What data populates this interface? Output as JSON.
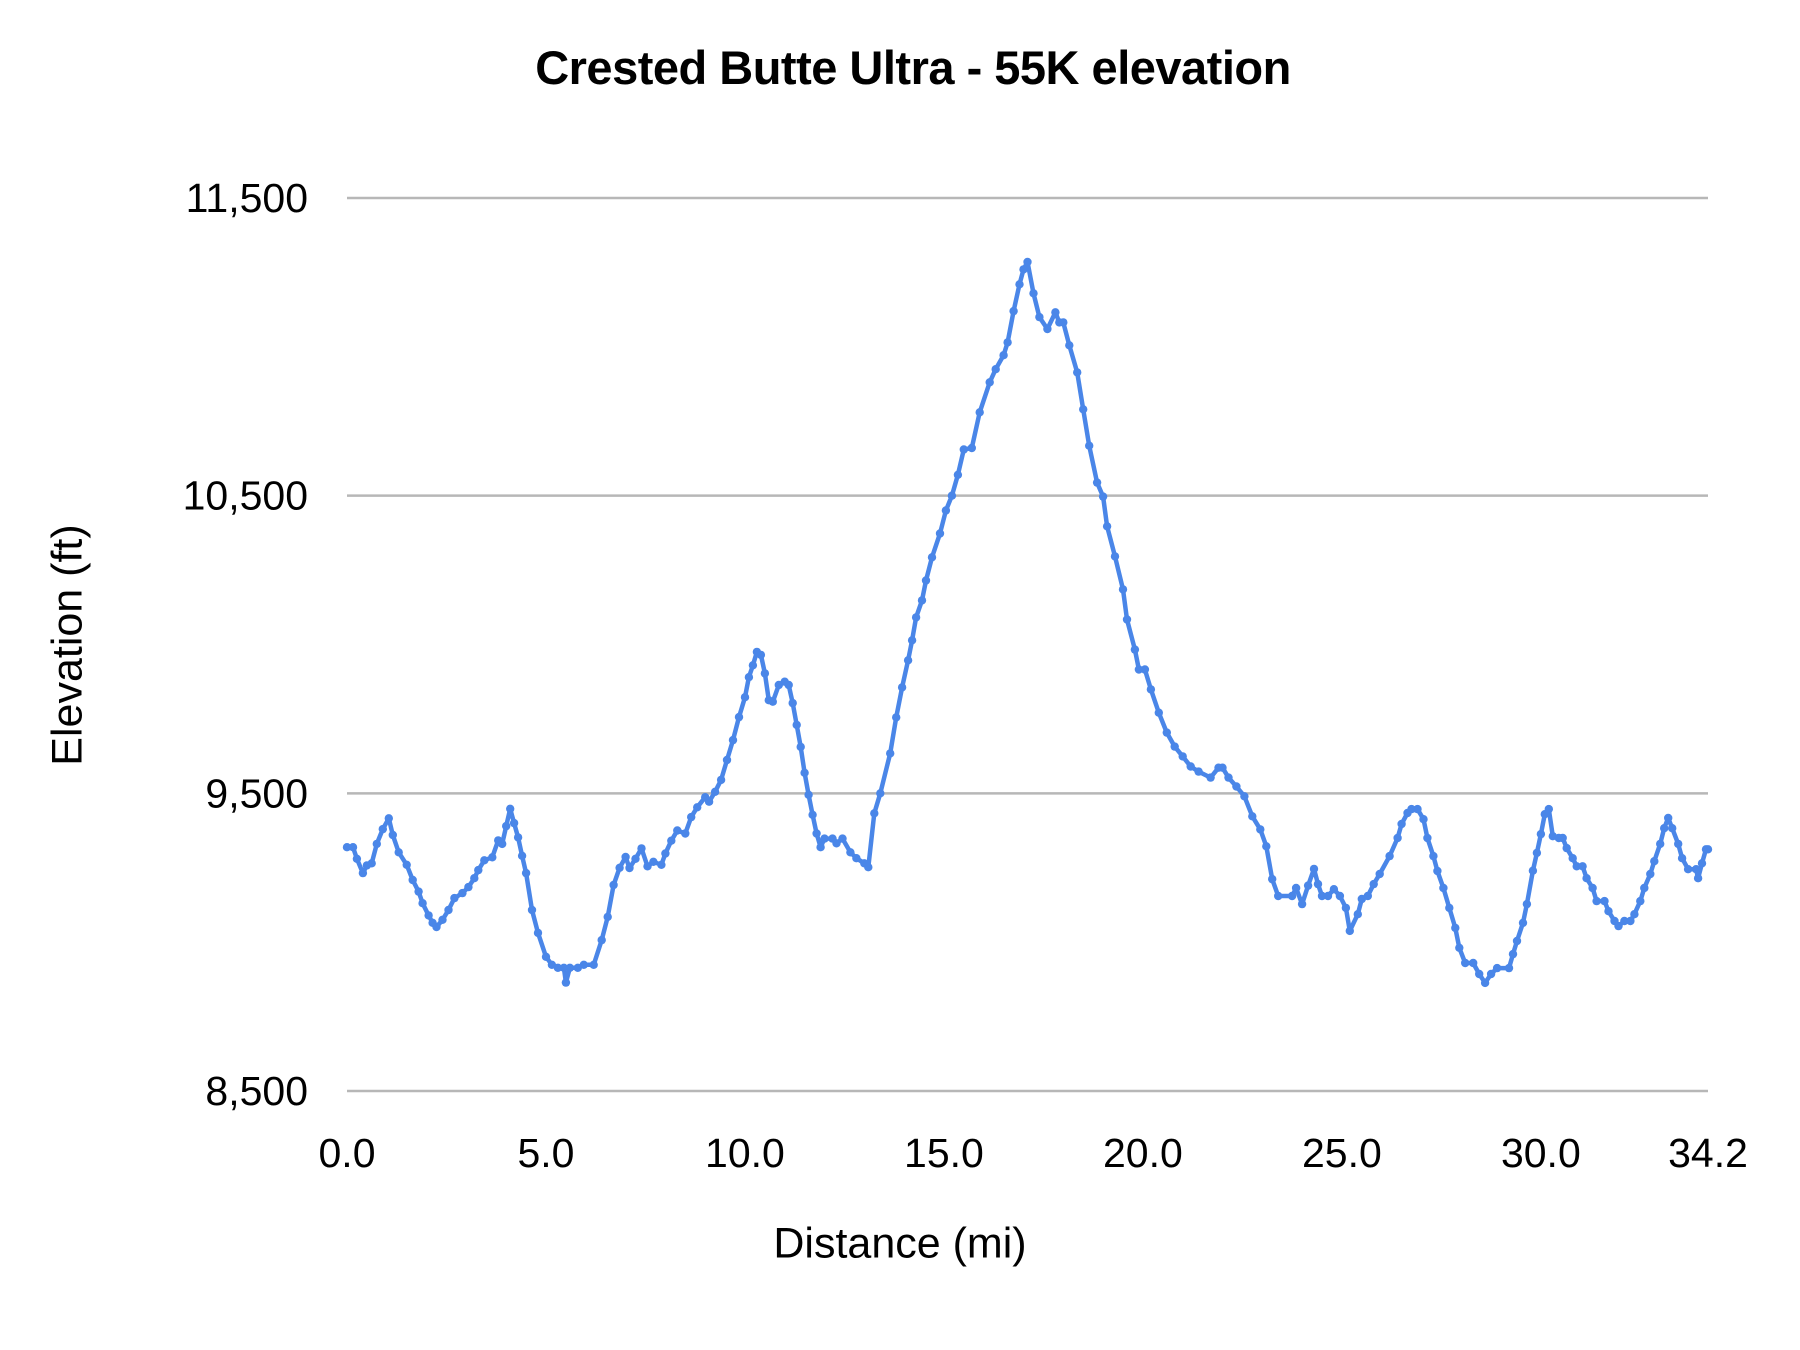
{
  "chart": {
    "title": "Crested Butte Ultra - 55K elevation",
    "x_axis_title": "Distance (mi)",
    "y_axis_title": "Elevation (ft)"
  },
  "chart_data": {
    "type": "line",
    "title": "Crested Butte Ultra - 55K elevation",
    "xlabel": "Distance (mi)",
    "ylabel": "Elevation (ft)",
    "xlim": [
      0,
      34.2
    ],
    "ylim": [
      8500,
      11500
    ],
    "grid": "horizontal-only",
    "legend": "none",
    "line_color": "#4a86e8",
    "grid_color": "#b7b7b7",
    "text_color": "#000000",
    "marker": "dot",
    "x_ticks": [
      {
        "v": 0,
        "label": "0.0"
      },
      {
        "v": 5,
        "label": "5.0"
      },
      {
        "v": 10,
        "label": "10.0"
      },
      {
        "v": 15,
        "label": "15.0"
      },
      {
        "v": 20,
        "label": "20.0"
      },
      {
        "v": 25,
        "label": "25.0"
      },
      {
        "v": 30,
        "label": "30.0"
      },
      {
        "v": 34.2,
        "label": "34.2"
      }
    ],
    "y_ticks": [
      {
        "v": 8500,
        "label": "8,500"
      },
      {
        "v": 9500,
        "label": "9,500"
      },
      {
        "v": 10500,
        "label": "10,500"
      },
      {
        "v": 11500,
        "label": "11,500"
      }
    ],
    "points": [
      [
        0.0,
        9319
      ],
      [
        0.15,
        9319
      ],
      [
        0.25,
        9280
      ],
      [
        0.4,
        9232
      ],
      [
        0.5,
        9258
      ],
      [
        0.62,
        9265
      ],
      [
        0.75,
        9330
      ],
      [
        0.9,
        9380
      ],
      [
        1.05,
        9416
      ],
      [
        1.15,
        9360
      ],
      [
        1.3,
        9302
      ],
      [
        1.5,
        9260
      ],
      [
        1.65,
        9209
      ],
      [
        1.8,
        9170
      ],
      [
        1.9,
        9131
      ],
      [
        2.05,
        9090
      ],
      [
        2.15,
        9065
      ],
      [
        2.25,
        9051
      ],
      [
        2.4,
        9075
      ],
      [
        2.55,
        9108
      ],
      [
        2.7,
        9148
      ],
      [
        2.9,
        9165
      ],
      [
        3.05,
        9185
      ],
      [
        3.2,
        9215
      ],
      [
        3.3,
        9242
      ],
      [
        3.45,
        9275
      ],
      [
        3.65,
        9285
      ],
      [
        3.8,
        9342
      ],
      [
        3.9,
        9330
      ],
      [
        4.0,
        9390
      ],
      [
        4.1,
        9448
      ],
      [
        4.2,
        9400
      ],
      [
        4.3,
        9352
      ],
      [
        4.4,
        9290
      ],
      [
        4.5,
        9232
      ],
      [
        4.65,
        9108
      ],
      [
        4.8,
        9031
      ],
      [
        5.0,
        8951
      ],
      [
        5.15,
        8924
      ],
      [
        5.3,
        8914
      ],
      [
        5.45,
        8914
      ],
      [
        5.5,
        8864
      ],
      [
        5.6,
        8914
      ],
      [
        5.8,
        8914
      ],
      [
        5.95,
        8924
      ],
      [
        6.2,
        8924
      ],
      [
        6.4,
        9007
      ],
      [
        6.55,
        9085
      ],
      [
        6.7,
        9192
      ],
      [
        6.85,
        9250
      ],
      [
        7.0,
        9286
      ],
      [
        7.1,
        9249
      ],
      [
        7.25,
        9280
      ],
      [
        7.4,
        9315
      ],
      [
        7.55,
        9255
      ],
      [
        7.7,
        9270
      ],
      [
        7.9,
        9260
      ],
      [
        8.0,
        9298
      ],
      [
        8.15,
        9341
      ],
      [
        8.3,
        9375
      ],
      [
        8.5,
        9365
      ],
      [
        8.65,
        9420
      ],
      [
        8.8,
        9453
      ],
      [
        9.0,
        9487
      ],
      [
        9.1,
        9472
      ],
      [
        9.25,
        9505
      ],
      [
        9.4,
        9545
      ],
      [
        9.55,
        9612
      ],
      [
        9.7,
        9679
      ],
      [
        9.85,
        9756
      ],
      [
        10.0,
        9823
      ],
      [
        10.1,
        9890
      ],
      [
        10.2,
        9930
      ],
      [
        10.3,
        9975
      ],
      [
        10.4,
        9965
      ],
      [
        10.5,
        9903
      ],
      [
        10.6,
        9813
      ],
      [
        10.7,
        9808
      ],
      [
        10.85,
        9864
      ],
      [
        11.0,
        9875
      ],
      [
        11.1,
        9864
      ],
      [
        11.2,
        9803
      ],
      [
        11.3,
        9730
      ],
      [
        11.4,
        9656
      ],
      [
        11.5,
        9569
      ],
      [
        11.6,
        9495
      ],
      [
        11.7,
        9428
      ],
      [
        11.8,
        9365
      ],
      [
        11.9,
        9319
      ],
      [
        12.0,
        9348
      ],
      [
        12.2,
        9348
      ],
      [
        12.3,
        9332
      ],
      [
        12.45,
        9348
      ],
      [
        12.65,
        9302
      ],
      [
        12.8,
        9282
      ],
      [
        13.0,
        9265
      ],
      [
        13.1,
        9252
      ],
      [
        13.25,
        9433
      ],
      [
        13.4,
        9500
      ],
      [
        13.65,
        9634
      ],
      [
        13.8,
        9755
      ],
      [
        13.95,
        9856
      ],
      [
        14.1,
        9947
      ],
      [
        14.2,
        10014
      ],
      [
        14.3,
        10091
      ],
      [
        14.45,
        10148
      ],
      [
        14.55,
        10215
      ],
      [
        14.7,
        10293
      ],
      [
        14.9,
        10373
      ],
      [
        15.05,
        10450
      ],
      [
        15.2,
        10500
      ],
      [
        15.35,
        10570
      ],
      [
        15.5,
        10655
      ],
      [
        15.7,
        10660
      ],
      [
        15.9,
        10780
      ],
      [
        16.15,
        10881
      ],
      [
        16.3,
        10925
      ],
      [
        16.5,
        10972
      ],
      [
        16.6,
        11015
      ],
      [
        16.75,
        11120
      ],
      [
        16.9,
        11210
      ],
      [
        17.0,
        11260
      ],
      [
        17.1,
        11285
      ],
      [
        17.25,
        11180
      ],
      [
        17.4,
        11100
      ],
      [
        17.6,
        11060
      ],
      [
        17.8,
        11116
      ],
      [
        17.9,
        11082
      ],
      [
        18.0,
        11082
      ],
      [
        18.15,
        11005
      ],
      [
        18.35,
        10914
      ],
      [
        18.5,
        10790
      ],
      [
        18.65,
        10668
      ],
      [
        18.85,
        10544
      ],
      [
        19.0,
        10497
      ],
      [
        19.1,
        10397
      ],
      [
        19.3,
        10296
      ],
      [
        19.5,
        10185
      ],
      [
        19.6,
        10084
      ],
      [
        19.8,
        9983
      ],
      [
        19.9,
        9916
      ],
      [
        20.05,
        9916
      ],
      [
        20.2,
        9849
      ],
      [
        20.4,
        9771
      ],
      [
        20.6,
        9704
      ],
      [
        20.8,
        9657
      ],
      [
        21.0,
        9624
      ],
      [
        21.2,
        9590
      ],
      [
        21.4,
        9573
      ],
      [
        21.7,
        9553
      ],
      [
        21.9,
        9586
      ],
      [
        22.0,
        9586
      ],
      [
        22.15,
        9553
      ],
      [
        22.35,
        9523
      ],
      [
        22.55,
        9490
      ],
      [
        22.75,
        9423
      ],
      [
        22.95,
        9379
      ],
      [
        23.1,
        9322
      ],
      [
        23.25,
        9212
      ],
      [
        23.4,
        9155
      ],
      [
        23.75,
        9155
      ],
      [
        23.85,
        9182
      ],
      [
        24.0,
        9128
      ],
      [
        24.15,
        9190
      ],
      [
        24.3,
        9246
      ],
      [
        24.4,
        9195
      ],
      [
        24.5,
        9155
      ],
      [
        24.65,
        9155
      ],
      [
        24.8,
        9178
      ],
      [
        24.95,
        9155
      ],
      [
        25.1,
        9115
      ],
      [
        25.2,
        9038
      ],
      [
        25.4,
        9094
      ],
      [
        25.5,
        9145
      ],
      [
        25.65,
        9155
      ],
      [
        25.8,
        9195
      ],
      [
        25.95,
        9229
      ],
      [
        26.2,
        9289
      ],
      [
        26.4,
        9350
      ],
      [
        26.5,
        9397
      ],
      [
        26.65,
        9434
      ],
      [
        26.75,
        9447
      ],
      [
        26.9,
        9447
      ],
      [
        27.05,
        9413
      ],
      [
        27.15,
        9350
      ],
      [
        27.3,
        9289
      ],
      [
        27.4,
        9239
      ],
      [
        27.55,
        9182
      ],
      [
        27.7,
        9115
      ],
      [
        27.85,
        9048
      ],
      [
        27.95,
        8981
      ],
      [
        28.1,
        8930
      ],
      [
        28.3,
        8930
      ],
      [
        28.45,
        8893
      ],
      [
        28.6,
        8863
      ],
      [
        28.75,
        8893
      ],
      [
        28.9,
        8913
      ],
      [
        29.2,
        8913
      ],
      [
        29.3,
        8960
      ],
      [
        29.4,
        9004
      ],
      [
        29.55,
        9065
      ],
      [
        29.65,
        9128
      ],
      [
        29.8,
        9240
      ],
      [
        29.9,
        9300
      ],
      [
        30.0,
        9363
      ],
      [
        30.1,
        9430
      ],
      [
        30.2,
        9447
      ],
      [
        30.3,
        9356
      ],
      [
        30.45,
        9350
      ],
      [
        30.55,
        9350
      ],
      [
        30.65,
        9316
      ],
      [
        30.8,
        9282
      ],
      [
        30.9,
        9255
      ],
      [
        31.05,
        9255
      ],
      [
        31.15,
        9215
      ],
      [
        31.3,
        9182
      ],
      [
        31.4,
        9138
      ],
      [
        31.6,
        9138
      ],
      [
        31.7,
        9104
      ],
      [
        31.85,
        9071
      ],
      [
        31.95,
        9054
      ],
      [
        32.1,
        9071
      ],
      [
        32.25,
        9071
      ],
      [
        32.35,
        9094
      ],
      [
        32.5,
        9138
      ],
      [
        32.6,
        9182
      ],
      [
        32.75,
        9229
      ],
      [
        32.85,
        9272
      ],
      [
        33.0,
        9330
      ],
      [
        33.1,
        9383
      ],
      [
        33.2,
        9417
      ],
      [
        33.3,
        9383
      ],
      [
        33.45,
        9330
      ],
      [
        33.55,
        9282
      ],
      [
        33.7,
        9245
      ],
      [
        33.9,
        9245
      ],
      [
        33.95,
        9215
      ],
      [
        34.05,
        9265
      ],
      [
        34.15,
        9312
      ],
      [
        34.2,
        9312
      ]
    ]
  }
}
